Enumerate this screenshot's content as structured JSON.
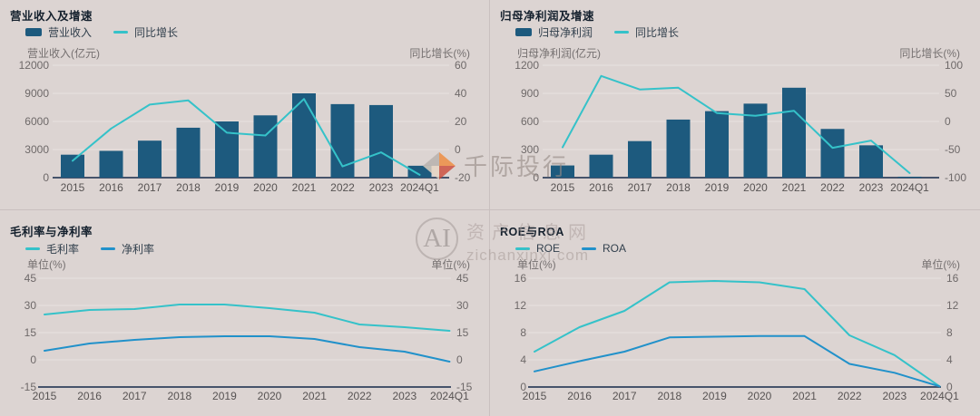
{
  "page": {
    "background": "#dcd4d2"
  },
  "watermark": {
    "brand": "千际投行",
    "ai": "AI",
    "site": "资产信息网",
    "domain": "zichanxinxi.com"
  },
  "chart_data": [
    {
      "type": "combo",
      "title": "营业收入及增速",
      "categories": [
        "2015",
        "2016",
        "2017",
        "2018",
        "2019",
        "2020",
        "2021",
        "2022",
        "2023",
        "2024Q1"
      ],
      "left_axis": {
        "label": "营业收入(亿元)",
        "ticks": [
          0,
          3000,
          6000,
          9000,
          12000
        ],
        "range": [
          0,
          12000
        ]
      },
      "right_axis": {
        "label": "同比增长(%)",
        "ticks": [
          -20,
          0,
          20,
          40,
          60
        ],
        "range": [
          -20,
          60
        ]
      },
      "series": [
        {
          "name": "营业收入",
          "type": "bar",
          "axis": "left",
          "color": "#1d5a7e",
          "values": [
            2450,
            2860,
            3950,
            5330,
            6000,
            6650,
            9000,
            7850,
            7750,
            1270
          ]
        },
        {
          "name": "同比增长",
          "type": "line",
          "axis": "right",
          "color": "#35c2c9",
          "values": [
            -8,
            15,
            32,
            35,
            12,
            10,
            36,
            -12,
            -2,
            -18
          ]
        }
      ]
    },
    {
      "type": "combo",
      "title": "归母净利润及增速",
      "categories": [
        "2015",
        "2016",
        "2017",
        "2018",
        "2019",
        "2020",
        "2021",
        "2022",
        "2023",
        "2024Q1"
      ],
      "left_axis": {
        "label": "归母净利润(亿元)",
        "ticks": [
          0,
          300,
          600,
          900,
          1200
        ],
        "range": [
          0,
          1200
        ]
      },
      "right_axis": {
        "label": "同比增长(%)",
        "ticks": [
          -100,
          -50,
          0,
          50,
          100
        ],
        "range": [
          -100,
          100
        ]
      },
      "series": [
        {
          "name": "归母净利润",
          "type": "bar",
          "axis": "left",
          "color": "#1d5a7e",
          "values": [
            130,
            245,
            390,
            620,
            710,
            790,
            960,
            520,
            345,
            10
          ]
        },
        {
          "name": "同比增长",
          "type": "line",
          "axis": "right",
          "color": "#35c2c9",
          "values": [
            -46,
            81,
            57,
            60,
            15,
            10,
            19,
            -47,
            -34,
            -92
          ]
        }
      ]
    },
    {
      "type": "line",
      "title": "毛利率与净利率",
      "categories": [
        "2015",
        "2016",
        "2017",
        "2018",
        "2019",
        "2020",
        "2021",
        "2022",
        "2023",
        "2024Q1"
      ],
      "left_axis": {
        "label": "单位(%)",
        "ticks": [
          -15,
          0,
          15,
          30,
          45
        ],
        "range": [
          -15,
          45
        ]
      },
      "right_axis": {
        "label": "单位(%)",
        "ticks": [
          -15,
          0,
          15,
          30,
          45
        ],
        "range": [
          -15,
          45
        ]
      },
      "series": [
        {
          "name": "毛利率",
          "type": "line",
          "axis": "left",
          "color": "#35c2c9",
          "values": [
            25,
            27.5,
            28,
            30.5,
            30.5,
            28.5,
            26,
            19.5,
            18,
            16
          ]
        },
        {
          "name": "净利率",
          "type": "line",
          "axis": "left",
          "color": "#2191ca",
          "values": [
            5,
            9,
            11,
            12.5,
            13,
            13,
            11.5,
            7,
            4.5,
            -1
          ]
        }
      ]
    },
    {
      "type": "line",
      "title": "ROE与ROA",
      "categories": [
        "2015",
        "2016",
        "2017",
        "2018",
        "2019",
        "2020",
        "2021",
        "2022",
        "2023",
        "2024Q1"
      ],
      "left_axis": {
        "label": "单位(%)",
        "ticks": [
          0,
          4,
          8,
          12,
          16
        ],
        "range": [
          0,
          16
        ]
      },
      "right_axis": {
        "label": "单位(%)",
        "ticks": [
          0,
          4,
          8,
          12,
          16
        ],
        "range": [
          0,
          16
        ]
      },
      "series": [
        {
          "name": "ROE",
          "type": "line",
          "axis": "left",
          "color": "#35c2c9",
          "values": [
            5.2,
            8.8,
            11.2,
            15.4,
            15.6,
            15.4,
            14.4,
            7.6,
            4.7,
            0.1
          ]
        },
        {
          "name": "ROA",
          "type": "line",
          "axis": "left",
          "color": "#2191ca",
          "values": [
            2.3,
            3.8,
            5.2,
            7.3,
            7.4,
            7.5,
            7.5,
            3.4,
            2.1,
            0.1
          ]
        }
      ]
    }
  ]
}
